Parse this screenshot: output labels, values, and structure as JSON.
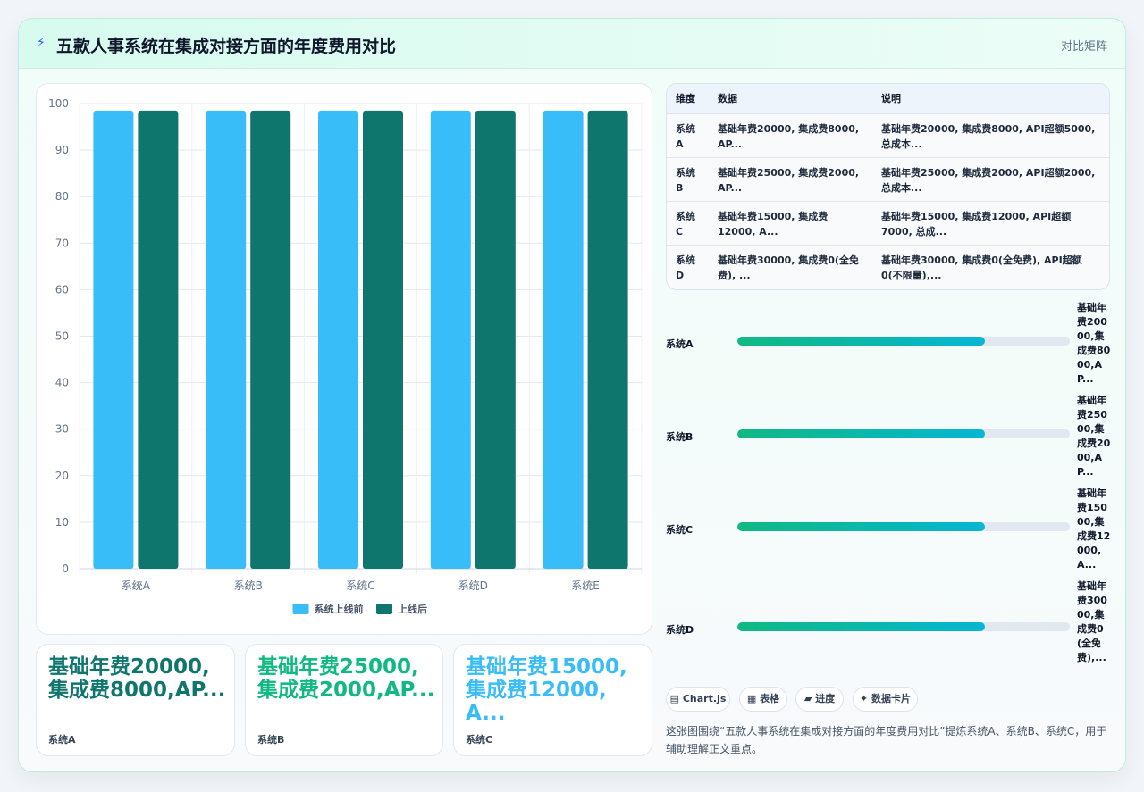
{
  "header": {
    "title": "五款人事系统在集成对接方面的年度费用对比",
    "tag": "对比矩阵",
    "icon": "lightning-icon"
  },
  "chart_data": {
    "type": "bar",
    "categories": [
      "系统A",
      "系统B",
      "系统C",
      "系统D",
      "系统E"
    ],
    "series": [
      {
        "name": "系统上线前",
        "color": "#38bdf8",
        "values": [
          98.5,
          98.5,
          98.5,
          98.5,
          98.5
        ]
      },
      {
        "name": "上线后",
        "color": "#0f766e",
        "values": [
          98.5,
          98.5,
          98.5,
          98.5,
          98.5
        ]
      }
    ],
    "ylim": [
      0,
      100
    ],
    "yticks": [
      0,
      10,
      20,
      30,
      40,
      50,
      60,
      70,
      80,
      90,
      100
    ],
    "grid": true,
    "legend_position": "bottom"
  },
  "table": {
    "headers": [
      "维度",
      "数据",
      "说明"
    ],
    "rows": [
      {
        "dim": "系统A",
        "data": "基础年费20000, 集成费8000, AP...",
        "desc": "基础年费20000, 集成费8000, API超额5000, 总成本..."
      },
      {
        "dim": "系统B",
        "data": "基础年费25000, 集成费2000, AP...",
        "desc": "基础年费25000, 集成费2000, API超额2000, 总成本..."
      },
      {
        "dim": "系统C",
        "data": "基础年费15000, 集成费12000, A...",
        "desc": "基础年费15000, 集成费12000, API超额7000, 总成..."
      },
      {
        "dim": "系统D",
        "data": "基础年费30000, 集成费0(全免费), ...",
        "desc": "基础年费30000, 集成费0(全免费), API超额0(不限量),..."
      }
    ]
  },
  "progress": [
    {
      "label": "系统A",
      "value": "基础年费20000,集成费8000,AP...",
      "fraction": 0.745
    },
    {
      "label": "系统B",
      "value": "基础年费25000,集成费2000,AP...",
      "fraction": 0.745
    },
    {
      "label": "系统C",
      "value": "基础年费15000,集成费12000,A...",
      "fraction": 0.745
    },
    {
      "label": "系统D",
      "value": "基础年费30000,集成费0(全免费),...",
      "fraction": 0.745
    }
  ],
  "stats": [
    {
      "value": "基础年费20000,集成费8000,AP...",
      "label": "系统A",
      "color": "#0f766e"
    },
    {
      "value": "基础年费25000,集成费2000,AP...",
      "label": "系统B",
      "color": "#10b981"
    },
    {
      "value": "基础年费15000,集成费12000,A...",
      "label": "系统C",
      "color": "#38bdf8"
    }
  ],
  "chips": [
    {
      "icon": "chart-icon",
      "glyph": "▤",
      "label": "Chart.js"
    },
    {
      "icon": "table-icon",
      "glyph": "▦",
      "label": "表格"
    },
    {
      "icon": "progress-icon",
      "glyph": "▰",
      "label": "进度"
    },
    {
      "icon": "card-icon",
      "glyph": "✦",
      "label": "数据卡片"
    }
  ],
  "footnote": "这张图围绕“五款人事系统在集成对接方面的年度费用对比”提炼系统A、系统B、系统C，用于辅助理解正文重点。"
}
